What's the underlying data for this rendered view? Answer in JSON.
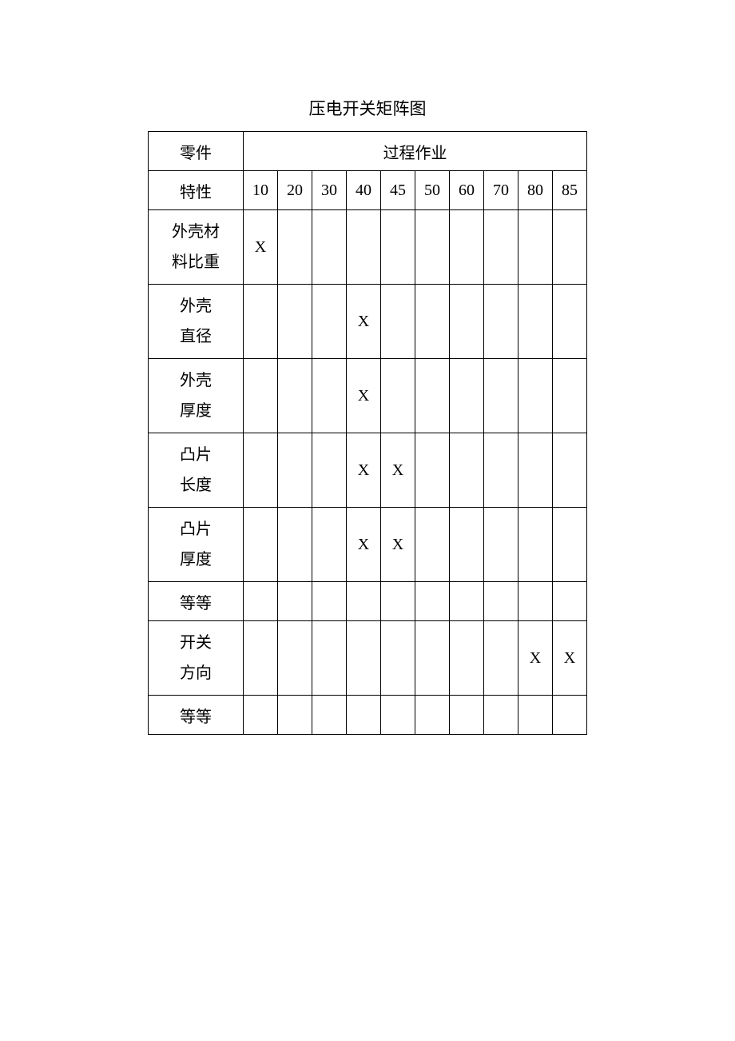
{
  "title": "压电开关矩阵图",
  "header": {
    "rowLabel": "零件",
    "rowLabel2": "特性",
    "groupLabel": "过程作业"
  },
  "columns": [
    "10",
    "20",
    "30",
    "40",
    "45",
    "50",
    "60",
    "70",
    "80",
    "85"
  ],
  "rows": [
    {
      "label": "外壳材料比重",
      "multiline": true,
      "marks": [
        "X",
        "",
        "",
        "",
        "",
        "",
        "",
        "",
        "",
        ""
      ]
    },
    {
      "label": "外壳直径",
      "multiline": true,
      "marks": [
        "",
        "",
        "",
        "X",
        "",
        "",
        "",
        "",
        "",
        ""
      ]
    },
    {
      "label": "外壳厚度",
      "multiline": true,
      "marks": [
        "",
        "",
        "",
        "X",
        "",
        "",
        "",
        "",
        "",
        ""
      ]
    },
    {
      "label": "凸片长度",
      "multiline": true,
      "marks": [
        "",
        "",
        "",
        "X",
        "X",
        "",
        "",
        "",
        "",
        ""
      ]
    },
    {
      "label": "凸片厚度",
      "multiline": true,
      "marks": [
        "",
        "",
        "",
        "X",
        "X",
        "",
        "",
        "",
        "",
        ""
      ]
    },
    {
      "label": "等等",
      "multiline": false,
      "marks": [
        "",
        "",
        "",
        "",
        "",
        "",
        "",
        "",
        "",
        ""
      ]
    },
    {
      "label": "开关方向",
      "multiline": true,
      "marks": [
        "",
        "",
        "",
        "",
        "",
        "",
        "",
        "",
        "X",
        "X"
      ]
    },
    {
      "label": "等等",
      "multiline": false,
      "marks": [
        "",
        "",
        "",
        "",
        "",
        "",
        "",
        "",
        "",
        ""
      ]
    }
  ]
}
